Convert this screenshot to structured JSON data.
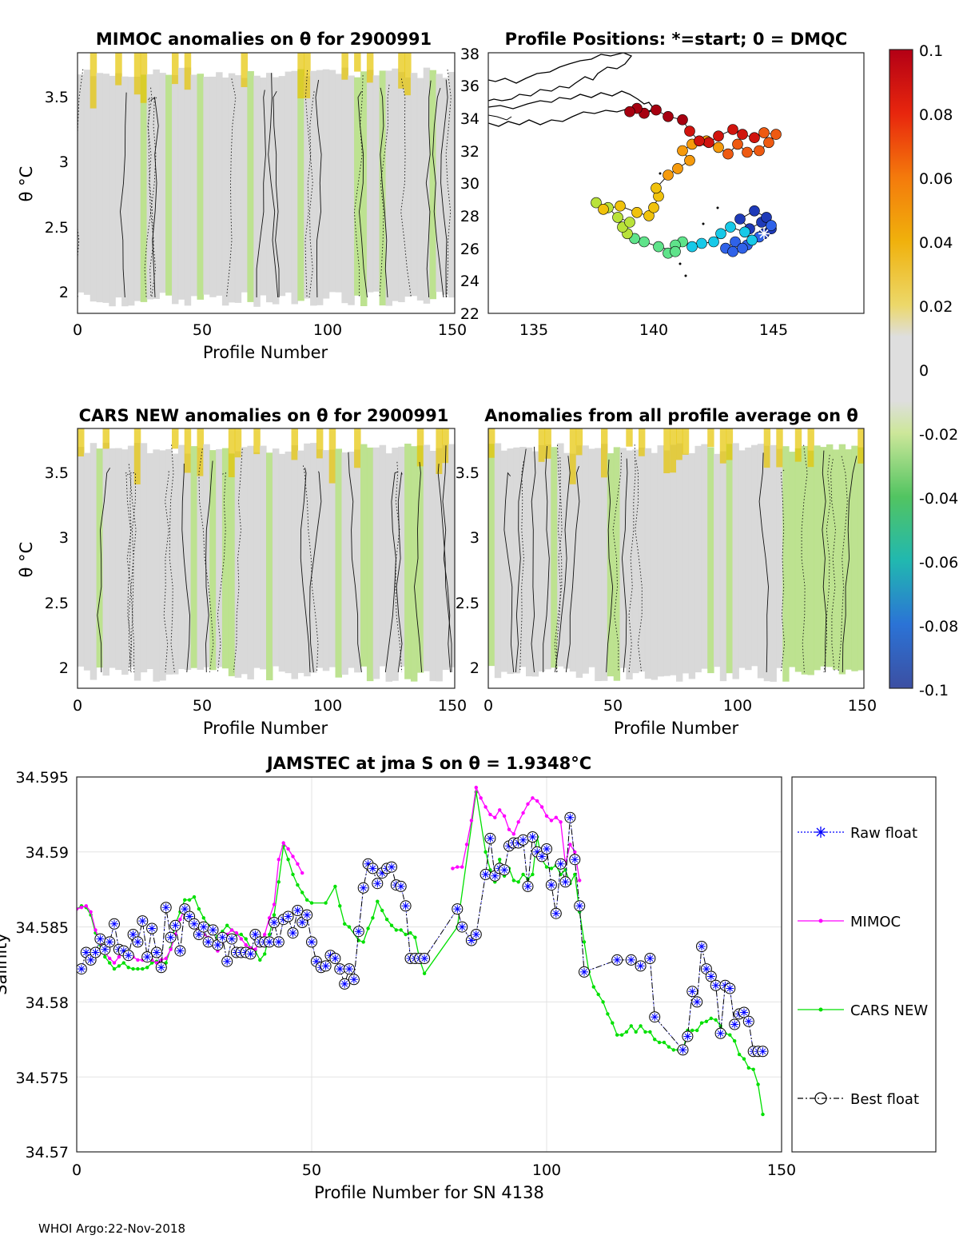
{
  "colors": {
    "mimoc": "#ff00ff",
    "cars": "#00e000",
    "raw": "#0000ff",
    "best": "#000000",
    "neutral": "#d7d7d7",
    "warm": "#e6c400",
    "cool": "#b9e08a"
  },
  "panels": {
    "mimoc": {
      "title": "MIMOC anomalies on θ  for 2900991",
      "xlabel": "Profile Number",
      "ylabel": "θ °C",
      "xticks": [
        "0",
        "50",
        "100",
        "150"
      ],
      "yticks": [
        "2",
        "2.5",
        "3",
        "3.5"
      ]
    },
    "map": {
      "title": "Profile Positions: *=start; 0 = DMQC",
      "xticks": [
        "135",
        "140",
        "145"
      ],
      "yticks": [
        "22",
        "24",
        "26",
        "28",
        "30",
        "32",
        "34",
        "36",
        "38"
      ]
    },
    "cars": {
      "title": "CARS NEW anomalies on θ for 2900991",
      "xlabel": "Profile Number",
      "ylabel": "θ °C",
      "xticks": [
        "0",
        "50",
        "100",
        "150"
      ],
      "yticks": [
        "2",
        "2.5",
        "3",
        "3.5"
      ]
    },
    "avg": {
      "title": "Anomalies from all profile average on θ",
      "xlabel": "Profile Number",
      "xticks": [
        "0",
        "50",
        "100",
        "150"
      ],
      "yticks": [
        "2",
        "2.5",
        "3",
        "3.5"
      ]
    }
  },
  "colorbar": {
    "ticks": [
      "0.1",
      "0.08",
      "0.06",
      "0.04",
      "0.02",
      "0",
      "-0.02",
      "-0.04",
      "-0.06",
      "-0.08",
      "-0.1"
    ]
  },
  "chart_data": {
    "type": "line",
    "title": "JAMSTEC at jma S on θ = 1.9348°C",
    "xlabel": "Profile Number for SN 4138",
    "ylabel": "Salinity",
    "xlim": [
      0,
      150
    ],
    "ylim": [
      34.57,
      34.595
    ],
    "xticks": [
      "0",
      "50",
      "100",
      "150"
    ],
    "yticks": [
      "34.57",
      "34.575",
      "34.58",
      "34.585",
      "34.59",
      "34.595"
    ],
    "legend": {
      "placement": "outside-right",
      "entries": [
        "Raw float",
        "MIMOC",
        "CARS NEW",
        "Best float"
      ]
    },
    "series": [
      {
        "name": "Best float",
        "x": [
          1,
          2,
          3,
          4,
          5,
          6,
          7,
          8,
          9,
          10,
          11,
          12,
          13,
          14,
          15,
          16,
          17,
          18,
          19,
          20,
          21,
          22,
          23,
          24,
          25,
          26,
          27,
          28,
          29,
          30,
          31,
          32,
          33,
          34,
          35,
          36,
          37,
          38,
          39,
          40,
          41,
          42,
          43,
          44,
          45,
          46,
          47,
          48,
          49,
          50,
          51,
          52,
          53,
          54,
          55,
          56,
          57,
          58,
          59,
          60,
          61,
          62,
          63,
          64,
          65,
          66,
          67,
          68,
          69,
          70,
          71,
          72,
          73,
          74,
          81,
          82,
          84,
          85,
          87,
          88,
          89,
          90,
          91,
          92,
          93,
          94,
          95,
          96,
          97,
          98,
          99,
          100,
          101,
          102,
          103,
          104,
          105,
          106,
          107,
          108,
          115,
          118,
          120,
          122,
          123,
          129,
          130,
          131,
          132,
          133,
          134,
          135,
          136,
          137,
          138,
          139,
          140,
          141,
          142,
          143,
          144,
          145,
          146
        ],
        "y": [
          34.5822,
          34.5833,
          34.5828,
          34.5833,
          34.5842,
          34.5835,
          34.584,
          34.5852,
          34.5835,
          34.5834,
          34.5831,
          34.5845,
          34.584,
          34.5854,
          34.583,
          34.5849,
          34.5833,
          34.5823,
          34.5863,
          34.5843,
          34.5851,
          34.5834,
          34.5862,
          34.5857,
          34.5852,
          34.5845,
          34.585,
          34.584,
          34.5848,
          34.5838,
          34.5843,
          34.5827,
          34.5842,
          34.5833,
          34.5833,
          34.5833,
          34.5832,
          34.5845,
          34.584,
          34.584,
          34.584,
          34.5853,
          34.584,
          34.5855,
          34.5857,
          34.5846,
          34.5861,
          34.5853,
          34.5858,
          34.584,
          34.5827,
          34.5823,
          34.5824,
          34.5831,
          34.5829,
          34.5822,
          34.5812,
          34.5822,
          34.5815,
          34.5847,
          34.5876,
          34.5892,
          34.5889,
          34.5879,
          34.5886,
          34.5889,
          34.589,
          34.5878,
          34.5877,
          34.5864,
          34.5829,
          34.5829,
          34.5829,
          34.5829,
          34.5862,
          34.585,
          34.5841,
          34.5845,
          34.5885,
          34.5909,
          34.5884,
          34.5889,
          34.5888,
          34.5904,
          34.5906,
          34.5906,
          34.5908,
          34.5877,
          34.591,
          34.59,
          34.5897,
          34.5902,
          34.5878,
          34.5859,
          34.5892,
          34.588,
          34.5923,
          34.5895,
          34.5864,
          34.582,
          34.5828,
          34.5828,
          34.5824,
          34.5829,
          34.579,
          34.5768,
          34.5777,
          34.5807,
          34.58,
          34.5837,
          34.5822,
          34.5817,
          34.5811,
          34.5779,
          34.5811,
          34.5809,
          34.5785,
          34.5792,
          34.5793,
          34.5787,
          34.5767,
          34.5767,
          34.5767
        ]
      },
      {
        "name": "Raw float",
        "x": [
          1,
          2,
          3,
          4,
          5,
          6,
          7,
          8,
          9,
          10,
          11,
          12,
          13,
          14,
          15,
          16,
          17,
          18,
          19,
          20,
          21,
          22,
          23,
          24,
          25,
          26,
          27,
          28,
          29,
          30,
          31,
          32,
          33,
          34,
          35,
          36,
          37,
          38,
          39,
          40,
          41,
          42,
          43,
          44,
          45,
          46,
          47,
          48,
          49,
          50,
          51,
          52,
          53,
          54,
          55,
          56,
          57,
          58,
          59,
          60,
          61,
          62,
          63,
          64,
          65,
          66,
          67,
          68,
          69,
          70,
          71,
          72,
          73,
          74,
          81,
          82,
          84,
          85,
          87,
          88,
          89,
          90,
          91,
          92,
          93,
          94,
          95,
          96,
          97,
          98,
          99,
          100,
          101,
          102,
          103,
          104,
          105,
          106,
          107,
          108,
          115,
          118,
          120,
          122,
          123,
          129,
          130,
          131,
          132,
          133,
          134,
          135,
          136,
          137,
          138,
          139,
          140,
          141,
          142,
          143,
          144,
          145,
          146
        ],
        "y": [
          34.5822,
          34.5833,
          34.5828,
          34.5833,
          34.5842,
          34.5835,
          34.584,
          34.5852,
          34.5835,
          34.5834,
          34.5831,
          34.5845,
          34.584,
          34.5854,
          34.583,
          34.5849,
          34.5833,
          34.5823,
          34.5863,
          34.5843,
          34.5851,
          34.5834,
          34.5862,
          34.5857,
          34.5852,
          34.5845,
          34.585,
          34.584,
          34.5848,
          34.5838,
          34.5843,
          34.5827,
          34.5842,
          34.5833,
          34.5833,
          34.5833,
          34.5832,
          34.5845,
          34.584,
          34.584,
          34.584,
          34.5853,
          34.584,
          34.5855,
          34.5857,
          34.5846,
          34.5861,
          34.5853,
          34.5858,
          34.584,
          34.5827,
          34.5823,
          34.5824,
          34.5831,
          34.5829,
          34.5822,
          34.5812,
          34.5822,
          34.5815,
          34.5847,
          34.5876,
          34.5892,
          34.5889,
          34.5879,
          34.5886,
          34.5889,
          34.589,
          34.5878,
          34.5877,
          34.5864,
          34.5829,
          34.5829,
          34.5829,
          34.5829,
          34.5862,
          34.585,
          34.5841,
          34.5845,
          34.5885,
          34.5909,
          34.5884,
          34.5889,
          34.5888,
          34.5904,
          34.5906,
          34.5906,
          34.5908,
          34.5877,
          34.591,
          34.59,
          34.5897,
          34.5902,
          34.5878,
          34.5859,
          34.5892,
          34.588,
          34.5923,
          34.5895,
          34.5864,
          34.582,
          34.5828,
          34.5828,
          34.5824,
          34.5829,
          34.579,
          34.5768,
          34.5777,
          34.5807,
          34.58,
          34.5837,
          34.5822,
          34.5817,
          34.5811,
          34.5779,
          34.5811,
          34.5809,
          34.5785,
          34.5792,
          34.5793,
          34.5787,
          34.5767,
          34.5767,
          34.5767
        ]
      },
      {
        "name": "MIMOC",
        "x": [
          0,
          1,
          2,
          3,
          4,
          5,
          6,
          7,
          8,
          9,
          10,
          11,
          12,
          13,
          14,
          15,
          16,
          17,
          18,
          19,
          20,
          21,
          22,
          23,
          24,
          25,
          26,
          27,
          28,
          29,
          30,
          31,
          32,
          33,
          34,
          35,
          36,
          37,
          38,
          39,
          40,
          41,
          42,
          43,
          44,
          45,
          46,
          47,
          48,
          null,
          80,
          81,
          82,
          83,
          84,
          85,
          86,
          87,
          88,
          89,
          90,
          91,
          92,
          93,
          94,
          95,
          96,
          97,
          98,
          99,
          100,
          101,
          102,
          103,
          104,
          105,
          106,
          107
        ],
        "y": [
          34.5862,
          34.5863,
          34.5864,
          34.586,
          34.5848,
          34.5839,
          34.5833,
          34.5829,
          34.5826,
          34.583,
          34.5835,
          34.5833,
          34.583,
          34.5828,
          34.5828,
          34.5828,
          34.5828,
          34.5826,
          34.5828,
          34.5829,
          34.5835,
          34.5845,
          34.5855,
          34.5862,
          34.5858,
          34.585,
          34.5847,
          34.5845,
          34.5843,
          34.5838,
          34.5834,
          34.584,
          34.5845,
          34.5848,
          34.5846,
          34.5842,
          34.5838,
          34.5836,
          34.5835,
          34.584,
          34.5845,
          34.5856,
          34.5865,
          34.5895,
          34.5906,
          34.5902,
          34.5897,
          34.5892,
          34.5886,
          null,
          34.5889,
          34.589,
          34.589,
          34.5905,
          34.5921,
          34.5943,
          34.5936,
          34.593,
          34.5925,
          34.5923,
          34.5928,
          34.5924,
          34.5915,
          34.5912,
          34.592,
          34.5926,
          34.5932,
          34.5936,
          34.5934,
          34.593,
          34.5924,
          34.5921,
          34.5923,
          34.592,
          34.5892,
          34.5905,
          34.59,
          34.5881
        ]
      },
      {
        "name": "CARS NEW",
        "x": [
          0,
          1,
          2,
          3,
          4,
          5,
          6,
          7,
          8,
          9,
          10,
          11,
          12,
          13,
          14,
          15,
          16,
          17,
          18,
          19,
          20,
          21,
          22,
          23,
          24,
          25,
          26,
          27,
          28,
          29,
          30,
          31,
          32,
          33,
          34,
          35,
          36,
          37,
          38,
          39,
          40,
          41,
          42,
          43,
          44,
          45,
          46,
          47,
          48,
          49,
          50,
          53,
          55,
          56,
          57,
          58,
          60,
          61,
          62,
          63,
          64,
          65,
          66,
          67,
          68,
          69,
          70,
          71,
          72,
          73,
          74,
          81,
          85,
          87,
          88,
          89,
          90,
          91,
          92,
          93,
          94,
          95,
          96,
          97,
          98,
          99,
          100,
          101,
          102,
          103,
          104,
          105,
          106,
          107,
          108,
          109,
          110,
          111,
          112,
          113,
          114,
          115,
          116,
          117,
          118,
          119,
          120,
          121,
          122,
          123,
          124,
          125,
          126,
          127,
          128,
          129,
          130,
          131,
          132,
          133,
          134,
          135,
          136,
          137,
          138,
          139,
          140,
          141,
          142,
          143,
          144,
          145,
          146
        ],
        "y": [
          34.5862,
          34.5864,
          34.5863,
          34.5858,
          34.5846,
          34.5838,
          34.583,
          34.5826,
          34.5822,
          34.5824,
          34.5826,
          34.5823,
          34.5822,
          34.5822,
          34.5822,
          34.5823,
          34.5826,
          34.5827,
          34.5826,
          34.5826,
          34.5836,
          34.5852,
          34.586,
          34.5868,
          34.5868,
          34.587,
          34.5862,
          34.5856,
          34.5851,
          34.5847,
          34.5843,
          34.5847,
          34.5851,
          34.5848,
          34.5845,
          34.5845,
          34.5842,
          34.5836,
          34.5834,
          34.5828,
          34.5832,
          34.5845,
          34.5858,
          34.588,
          34.5904,
          34.5895,
          34.5885,
          34.5878,
          34.5873,
          34.5868,
          34.5866,
          34.5866,
          34.5877,
          34.5864,
          34.5852,
          34.585,
          34.5841,
          34.584,
          34.5849,
          34.5856,
          34.5867,
          34.5861,
          34.5855,
          34.5851,
          34.5848,
          34.5848,
          34.5845,
          34.5846,
          34.5843,
          34.5828,
          34.5819,
          34.585,
          34.594,
          34.59,
          34.5888,
          34.588,
          34.5895,
          34.5884,
          34.5889,
          34.5881,
          34.588,
          34.5885,
          34.5882,
          34.5885,
          34.591,
          34.5895,
          34.589,
          34.5889,
          34.5891,
          34.5885,
          34.5888,
          34.5879,
          34.5885,
          34.586,
          34.584,
          34.582,
          34.581,
          34.5805,
          34.58,
          34.5792,
          34.5786,
          34.5778,
          34.5778,
          34.578,
          34.5784,
          34.578,
          34.5784,
          34.578,
          34.578,
          34.5775,
          34.5773,
          34.5773,
          34.577,
          34.5768,
          34.5768,
          34.5767,
          34.5781,
          34.5781,
          34.5781,
          34.5786,
          34.5787,
          34.5789,
          34.5788,
          34.5784,
          34.5779,
          34.5778,
          34.5774,
          34.5765,
          34.5762,
          34.5756,
          34.5755,
          34.5745,
          34.5725
        ]
      }
    ]
  },
  "footer": "WHOI Argo:22-Nov-2018"
}
